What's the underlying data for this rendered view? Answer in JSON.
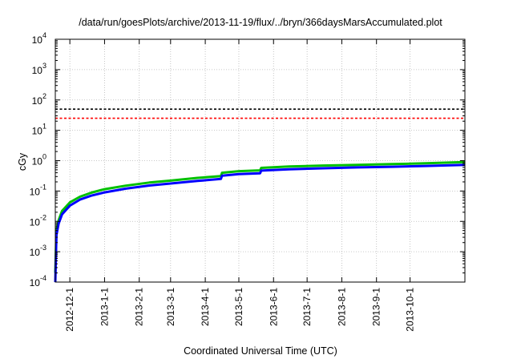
{
  "chart_data": {
    "type": "line",
    "title": "/data/run/goesPlots/archive/2013-11-19/flux/../bryn/366daysMarsAccumulated.plot",
    "xlabel": "Coordinated Universal Time (UTC)",
    "ylabel": "cGy",
    "y_scale": "log",
    "ylim": [
      0.0001,
      10000
    ],
    "xlim": [
      "2012-11-18",
      "2013-11-19"
    ],
    "grid": true,
    "y_ticks": [
      {
        "base": "10",
        "exp": "-4",
        "value": 0.0001
      },
      {
        "base": "10",
        "exp": "-3",
        "value": 0.001
      },
      {
        "base": "10",
        "exp": "-2",
        "value": 0.01
      },
      {
        "base": "10",
        "exp": "-1",
        "value": 0.1
      },
      {
        "base": "10",
        "exp": "0",
        "value": 1
      },
      {
        "base": "10",
        "exp": "1",
        "value": 10
      },
      {
        "base": "10",
        "exp": "2",
        "value": 100
      },
      {
        "base": "10",
        "exp": "3",
        "value": 1000
      },
      {
        "base": "10",
        "exp": "4",
        "value": 10000
      }
    ],
    "x_ticks": [
      "2012-12-1",
      "2013-1-1",
      "2013-2-1",
      "2013-3-1",
      "2013-4-1",
      "2013-5-1",
      "2013-6-1",
      "2013-7-1",
      "2013-8-1",
      "2013-9-1",
      "2013-10-1"
    ],
    "hlines": [
      {
        "value": 50,
        "color": "#000000",
        "style": "dashed"
      },
      {
        "value": 25,
        "color": "#ff0000",
        "style": "dashed"
      }
    ],
    "series": [
      {
        "color": "#00c000",
        "x": [
          "2012-11-18",
          "2012-11-19",
          "2012-11-21",
          "2012-11-24",
          "2012-12-01",
          "2012-12-10",
          "2012-12-20",
          "2013-01-01",
          "2013-01-20",
          "2013-02-10",
          "2013-03-01",
          "2013-03-25",
          "2013-04-15",
          "2013-04-16",
          "2013-05-01",
          "2013-05-20",
          "2013-05-21",
          "2013-06-15",
          "2013-07-15",
          "2013-08-15",
          "2013-09-15",
          "2013-10-15",
          "2013-11-19"
        ],
        "y": [
          0.0002,
          0.005,
          0.011,
          0.022,
          0.042,
          0.065,
          0.088,
          0.115,
          0.15,
          0.19,
          0.22,
          0.27,
          0.31,
          0.4,
          0.45,
          0.48,
          0.58,
          0.64,
          0.69,
          0.73,
          0.77,
          0.82,
          0.9
        ]
      },
      {
        "color": "#0000ff",
        "x": [
          "2012-11-18",
          "2012-11-19",
          "2012-11-21",
          "2012-11-24",
          "2012-12-01",
          "2012-12-10",
          "2012-12-20",
          "2013-01-01",
          "2013-01-20",
          "2013-02-10",
          "2013-03-01",
          "2013-03-25",
          "2013-04-15",
          "2013-04-16",
          "2013-05-01",
          "2013-05-20",
          "2013-05-21",
          "2013-06-15",
          "2013-07-15",
          "2013-08-15",
          "2013-09-15",
          "2013-10-15",
          "2013-11-19"
        ],
        "y": [
          0.0001,
          0.0035,
          0.0085,
          0.017,
          0.033,
          0.052,
          0.07,
          0.09,
          0.12,
          0.152,
          0.177,
          0.215,
          0.25,
          0.32,
          0.36,
          0.385,
          0.47,
          0.52,
          0.56,
          0.6,
          0.63,
          0.67,
          0.73
        ]
      }
    ]
  }
}
